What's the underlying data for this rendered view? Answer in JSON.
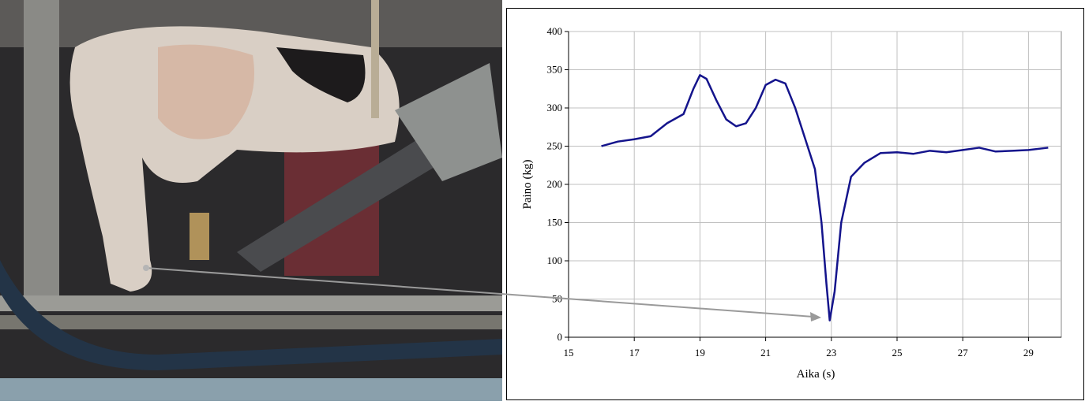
{
  "chart_data": {
    "type": "line",
    "x_label": "Aika (s)",
    "y_label": "Paino (kg)",
    "x": [
      16,
      16.5,
      17,
      17.5,
      18,
      18.5,
      18.8,
      19,
      19.2,
      19.5,
      19.8,
      20.1,
      20.4,
      20.7,
      21,
      21.3,
      21.6,
      21.9,
      22.2,
      22.5,
      22.7,
      22.85,
      22.95,
      23.1,
      23.3,
      23.6,
      24,
      24.5,
      25,
      25.5,
      26,
      26.5,
      27,
      27.5,
      28,
      28.5,
      29,
      29.6
    ],
    "series": [
      {
        "color": "#14148c",
        "values": [
          250,
          256,
          259,
          263,
          280,
          292,
          325,
          343,
          338,
          310,
          285,
          276,
          280,
          300,
          330,
          337,
          332,
          300,
          260,
          220,
          150,
          70,
          22,
          60,
          150,
          210,
          228,
          241,
          242,
          240,
          244,
          242,
          245,
          248,
          243,
          244,
          245,
          248
        ]
      }
    ],
    "xlim": [
      15,
      30
    ],
    "xticks": [
      15,
      17,
      19,
      21,
      23,
      25,
      27,
      29
    ],
    "ylim": [
      0,
      400
    ],
    "yticks": [
      0,
      50,
      100,
      150,
      200,
      250,
      300,
      350,
      400
    ],
    "grid": true
  }
}
